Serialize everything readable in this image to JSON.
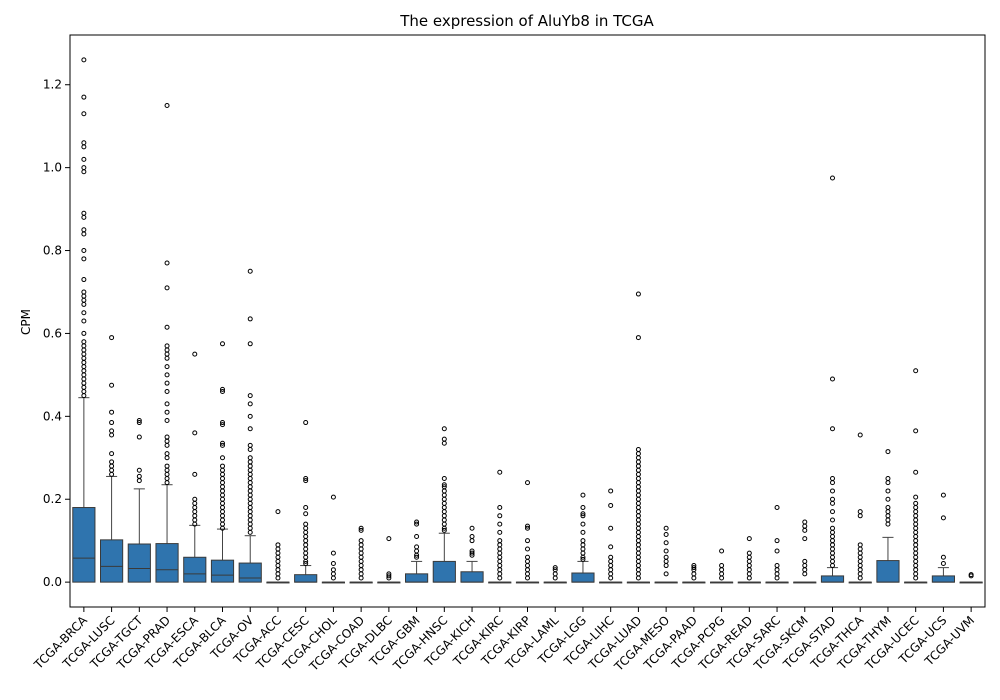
{
  "chart_data": {
    "type": "box",
    "title": "The expression of AluYb8 in TCGA",
    "xlabel": "",
    "ylabel": "CPM",
    "ylim": [
      -0.06,
      1.32
    ],
    "yticks": [
      0.0,
      0.2,
      0.4,
      0.6,
      0.8,
      1.0,
      1.2
    ],
    "ytick_labels": [
      "0.0",
      "0.2",
      "0.4",
      "0.6",
      "0.8",
      "1.0",
      "1.2"
    ],
    "grid": false,
    "box_color": "#2f74ae",
    "categories": [
      "TCGA-BRCA",
      "TCGA-LUSC",
      "TCGA-TGCT",
      "TCGA-PRAD",
      "TCGA-ESCA",
      "TCGA-BLCA",
      "TCGA-OV",
      "TCGA-ACC",
      "TCGA-CESC",
      "TCGA-CHOL",
      "TCGA-COAD",
      "TCGA-DLBC",
      "TCGA-GBM",
      "TCGA-HNSC",
      "TCGA-KICH",
      "TCGA-KIRC",
      "TCGA-KIRP",
      "TCGA-LAML",
      "TCGA-LGG",
      "TCGA-LIHC",
      "TCGA-LUAD",
      "TCGA-MESO",
      "TCGA-PAAD",
      "TCGA-PCPG",
      "TCGA-READ",
      "TCGA-SARC",
      "TCGA-SKCM",
      "TCGA-STAD",
      "TCGA-THCA",
      "TCGA-THYM",
      "TCGA-UCEC",
      "TCGA-UCS",
      "TCGA-UVM"
    ],
    "boxes": [
      {
        "q1": 0.0,
        "median": 0.058,
        "q3": 0.18,
        "whisker_low": 0.0,
        "whisker_high": 0.445,
        "outliers": [
          1.26,
          1.17,
          1.13,
          1.06,
          1.05,
          1.02,
          1.0,
          0.99,
          0.89,
          0.88,
          0.85,
          0.84,
          0.8,
          0.78,
          0.73,
          0.7,
          0.69,
          0.68,
          0.67,
          0.65,
          0.63,
          0.6,
          0.58,
          0.57,
          0.56,
          0.55,
          0.54,
          0.53,
          0.52,
          0.51,
          0.5,
          0.49,
          0.48,
          0.47,
          0.46,
          0.45
        ]
      },
      {
        "q1": 0.0,
        "median": 0.038,
        "q3": 0.102,
        "whisker_low": 0.0,
        "whisker_high": 0.255,
        "outliers": [
          0.59,
          0.475,
          0.41,
          0.385,
          0.365,
          0.355,
          0.31,
          0.29,
          0.28,
          0.27,
          0.26
        ]
      },
      {
        "q1": 0.0,
        "median": 0.033,
        "q3": 0.092,
        "whisker_low": 0.0,
        "whisker_high": 0.225,
        "outliers": [
          0.39,
          0.385,
          0.35,
          0.27,
          0.255,
          0.245
        ]
      },
      {
        "q1": 0.0,
        "median": 0.03,
        "q3": 0.093,
        "whisker_low": 0.0,
        "whisker_high": 0.235,
        "outliers": [
          1.15,
          0.77,
          0.71,
          0.615,
          0.57,
          0.56,
          0.55,
          0.54,
          0.52,
          0.5,
          0.48,
          0.46,
          0.43,
          0.41,
          0.39,
          0.35,
          0.34,
          0.33,
          0.31,
          0.3,
          0.28,
          0.27,
          0.26,
          0.25,
          0.24
        ]
      },
      {
        "q1": 0.0,
        "median": 0.02,
        "q3": 0.06,
        "whisker_low": 0.0,
        "whisker_high": 0.137,
        "outliers": [
          0.55,
          0.36,
          0.26,
          0.2,
          0.19,
          0.18,
          0.17,
          0.16,
          0.15,
          0.14
        ]
      },
      {
        "q1": 0.0,
        "median": 0.017,
        "q3": 0.053,
        "whisker_low": 0.0,
        "whisker_high": 0.128,
        "outliers": [
          0.575,
          0.465,
          0.46,
          0.385,
          0.38,
          0.335,
          0.33,
          0.3,
          0.28,
          0.27,
          0.26,
          0.25,
          0.24,
          0.23,
          0.22,
          0.21,
          0.2,
          0.19,
          0.18,
          0.17,
          0.16,
          0.15,
          0.14,
          0.13
        ]
      },
      {
        "q1": 0.0,
        "median": 0.01,
        "q3": 0.046,
        "whisker_low": 0.0,
        "whisker_high": 0.112,
        "outliers": [
          0.75,
          0.635,
          0.575,
          0.45,
          0.43,
          0.4,
          0.37,
          0.33,
          0.32,
          0.3,
          0.29,
          0.28,
          0.27,
          0.26,
          0.25,
          0.24,
          0.23,
          0.22,
          0.21,
          0.2,
          0.19,
          0.18,
          0.17,
          0.16,
          0.15,
          0.14,
          0.13,
          0.12
        ]
      },
      {
        "q1": 0.0,
        "median": 0.0,
        "q3": 0.0,
        "whisker_low": 0.0,
        "whisker_high": 0.0,
        "outliers": [
          0.17,
          0.09,
          0.08,
          0.07,
          0.06,
          0.05,
          0.04,
          0.03,
          0.02,
          0.01
        ]
      },
      {
        "q1": 0.0,
        "median": 0.0,
        "q3": 0.018,
        "whisker_low": 0.0,
        "whisker_high": 0.04,
        "outliers": [
          0.385,
          0.25,
          0.245,
          0.18,
          0.165,
          0.14,
          0.13,
          0.12,
          0.11,
          0.1,
          0.09,
          0.08,
          0.07,
          0.06,
          0.05,
          0.045
        ]
      },
      {
        "q1": 0.0,
        "median": 0.0,
        "q3": 0.0,
        "whisker_low": 0.0,
        "whisker_high": 0.0,
        "outliers": [
          0.205,
          0.07,
          0.045,
          0.03,
          0.02,
          0.01
        ]
      },
      {
        "q1": 0.0,
        "median": 0.0,
        "q3": 0.0,
        "whisker_low": 0.0,
        "whisker_high": 0.0,
        "outliers": [
          0.13,
          0.125,
          0.1,
          0.09,
          0.08,
          0.07,
          0.06,
          0.05,
          0.04,
          0.03,
          0.02,
          0.01
        ]
      },
      {
        "q1": 0.0,
        "median": 0.0,
        "q3": 0.0,
        "whisker_low": 0.0,
        "whisker_high": 0.0,
        "outliers": [
          0.105,
          0.02,
          0.015,
          0.01
        ]
      },
      {
        "q1": 0.0,
        "median": 0.0,
        "q3": 0.02,
        "whisker_low": 0.0,
        "whisker_high": 0.05,
        "outliers": [
          0.145,
          0.14,
          0.11,
          0.085,
          0.075,
          0.065,
          0.06
        ]
      },
      {
        "q1": 0.0,
        "median": 0.0,
        "q3": 0.05,
        "whisker_low": 0.0,
        "whisker_high": 0.118,
        "outliers": [
          0.37,
          0.345,
          0.335,
          0.25,
          0.235,
          0.23,
          0.22,
          0.21,
          0.2,
          0.19,
          0.18,
          0.17,
          0.16,
          0.15,
          0.14,
          0.13,
          0.125
        ]
      },
      {
        "q1": 0.0,
        "median": 0.0,
        "q3": 0.025,
        "whisker_low": 0.0,
        "whisker_high": 0.05,
        "outliers": [
          0.13,
          0.11,
          0.1,
          0.075,
          0.07,
          0.065
        ]
      },
      {
        "q1": 0.0,
        "median": 0.0,
        "q3": 0.0,
        "whisker_low": 0.0,
        "whisker_high": 0.0,
        "outliers": [
          0.265,
          0.18,
          0.16,
          0.14,
          0.12,
          0.1,
          0.09,
          0.08,
          0.07,
          0.06,
          0.05,
          0.04,
          0.03,
          0.02,
          0.01
        ]
      },
      {
        "q1": 0.0,
        "median": 0.0,
        "q3": 0.0,
        "whisker_low": 0.0,
        "whisker_high": 0.0,
        "outliers": [
          0.24,
          0.135,
          0.13,
          0.1,
          0.08,
          0.06,
          0.05,
          0.04,
          0.03,
          0.02,
          0.01
        ]
      },
      {
        "q1": 0.0,
        "median": 0.0,
        "q3": 0.0,
        "whisker_low": 0.0,
        "whisker_high": 0.0,
        "outliers": [
          0.035,
          0.03,
          0.02,
          0.01
        ]
      },
      {
        "q1": 0.0,
        "median": 0.0,
        "q3": 0.022,
        "whisker_low": 0.0,
        "whisker_high": 0.05,
        "outliers": [
          0.21,
          0.18,
          0.165,
          0.16,
          0.14,
          0.12,
          0.1,
          0.09,
          0.08,
          0.07,
          0.06,
          0.055
        ]
      },
      {
        "q1": 0.0,
        "median": 0.0,
        "q3": 0.0,
        "whisker_low": 0.0,
        "whisker_high": 0.0,
        "outliers": [
          0.22,
          0.185,
          0.13,
          0.085,
          0.06,
          0.05,
          0.04,
          0.03,
          0.02,
          0.01
        ]
      },
      {
        "q1": 0.0,
        "median": 0.0,
        "q3": 0.0,
        "whisker_low": 0.0,
        "whisker_high": 0.0,
        "outliers": [
          0.695,
          0.59,
          0.32,
          0.31,
          0.3,
          0.29,
          0.28,
          0.27,
          0.26,
          0.25,
          0.24,
          0.23,
          0.22,
          0.21,
          0.2,
          0.19,
          0.18,
          0.17,
          0.16,
          0.15,
          0.14,
          0.13,
          0.12,
          0.11,
          0.1,
          0.09,
          0.08,
          0.07,
          0.06,
          0.05,
          0.04,
          0.03,
          0.02,
          0.01
        ]
      },
      {
        "q1": 0.0,
        "median": 0.0,
        "q3": 0.0,
        "whisker_low": 0.0,
        "whisker_high": 0.0,
        "outliers": [
          0.13,
          0.115,
          0.095,
          0.075,
          0.06,
          0.05,
          0.04,
          0.02
        ]
      },
      {
        "q1": 0.0,
        "median": 0.0,
        "q3": 0.0,
        "whisker_low": 0.0,
        "whisker_high": 0.0,
        "outliers": [
          0.04,
          0.035,
          0.03,
          0.02,
          0.01
        ]
      },
      {
        "q1": 0.0,
        "median": 0.0,
        "q3": 0.0,
        "whisker_low": 0.0,
        "whisker_high": 0.0,
        "outliers": [
          0.075,
          0.04,
          0.03,
          0.02,
          0.01
        ]
      },
      {
        "q1": 0.0,
        "median": 0.0,
        "q3": 0.0,
        "whisker_low": 0.0,
        "whisker_high": 0.0,
        "outliers": [
          0.105,
          0.07,
          0.06,
          0.05,
          0.04,
          0.03,
          0.02,
          0.01
        ]
      },
      {
        "q1": 0.0,
        "median": 0.0,
        "q3": 0.0,
        "whisker_low": 0.0,
        "whisker_high": 0.0,
        "outliers": [
          0.18,
          0.1,
          0.075,
          0.04,
          0.03,
          0.02,
          0.01
        ]
      },
      {
        "q1": 0.0,
        "median": 0.0,
        "q3": 0.0,
        "whisker_low": 0.0,
        "whisker_high": 0.0,
        "outliers": [
          0.145,
          0.135,
          0.125,
          0.105,
          0.05,
          0.04,
          0.03,
          0.02
        ]
      },
      {
        "q1": 0.0,
        "median": 0.0,
        "q3": 0.015,
        "whisker_low": 0.0,
        "whisker_high": 0.035,
        "outliers": [
          0.975,
          0.49,
          0.37,
          0.25,
          0.24,
          0.22,
          0.2,
          0.19,
          0.17,
          0.15,
          0.13,
          0.12,
          0.11,
          0.1,
          0.09,
          0.08,
          0.07,
          0.06,
          0.05,
          0.04
        ]
      },
      {
        "q1": 0.0,
        "median": 0.0,
        "q3": 0.0,
        "whisker_low": 0.0,
        "whisker_high": 0.0,
        "outliers": [
          0.355,
          0.17,
          0.16,
          0.09,
          0.08,
          0.07,
          0.06,
          0.05,
          0.04,
          0.03,
          0.02,
          0.01
        ]
      },
      {
        "q1": 0.0,
        "median": 0.0,
        "q3": 0.052,
        "whisker_low": 0.0,
        "whisker_high": 0.108,
        "outliers": [
          0.315,
          0.25,
          0.24,
          0.22,
          0.2,
          0.18,
          0.17,
          0.16,
          0.15,
          0.14
        ]
      },
      {
        "q1": 0.0,
        "median": 0.0,
        "q3": 0.0,
        "whisker_low": 0.0,
        "whisker_high": 0.0,
        "outliers": [
          0.51,
          0.365,
          0.265,
          0.205,
          0.19,
          0.18,
          0.17,
          0.16,
          0.15,
          0.14,
          0.13,
          0.12,
          0.11,
          0.1,
          0.09,
          0.08,
          0.07,
          0.06,
          0.05,
          0.04,
          0.03,
          0.02,
          0.01
        ]
      },
      {
        "q1": 0.0,
        "median": 0.0,
        "q3": 0.015,
        "whisker_low": 0.0,
        "whisker_high": 0.035,
        "outliers": [
          0.21,
          0.155,
          0.06,
          0.045
        ]
      },
      {
        "q1": 0.0,
        "median": 0.0,
        "q3": 0.0,
        "whisker_low": 0.0,
        "whisker_high": 0.0,
        "outliers": [
          0.018,
          0.015
        ]
      }
    ]
  }
}
